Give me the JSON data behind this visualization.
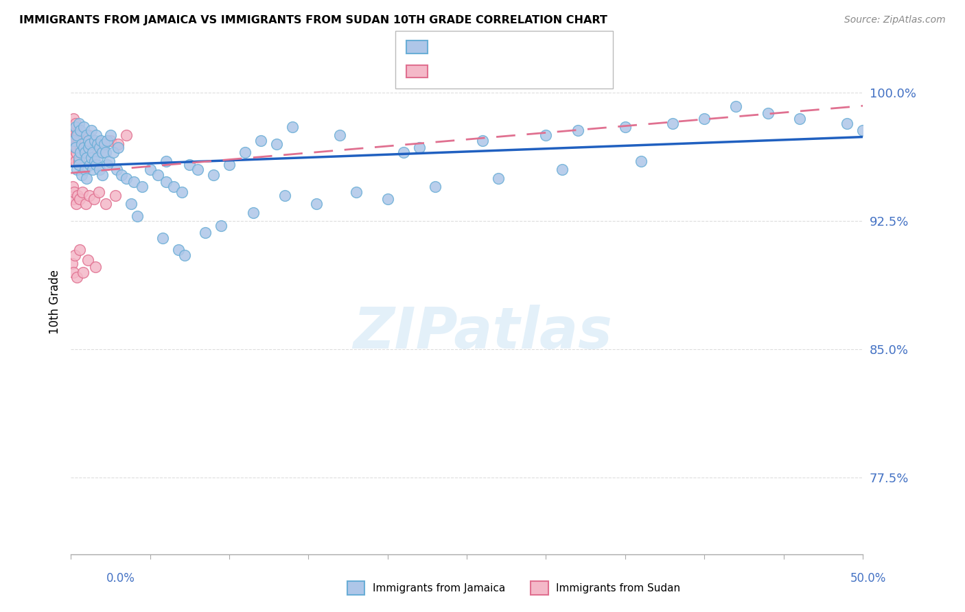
{
  "title": "IMMIGRANTS FROM JAMAICA VS IMMIGRANTS FROM SUDAN 10TH GRADE CORRELATION CHART",
  "source_text": "Source: ZipAtlas.com",
  "ylabel": "10th Grade",
  "ytick_values": [
    77.5,
    85.0,
    92.5,
    100.0
  ],
  "xlim": [
    0.0,
    50.0
  ],
  "ylim": [
    73.0,
    102.5
  ],
  "watermark": "ZIPatlas",
  "jamaica_color": "#aec6e8",
  "jamaica_edge": "#6aaed6",
  "sudan_color": "#f4b8c8",
  "sudan_edge": "#e07090",
  "trendline_jamaica_color": "#2060c0",
  "trendline_sudan_color": "#e07090",
  "jamaica_x": [
    0.2,
    0.3,
    0.3,
    0.4,
    0.4,
    0.5,
    0.5,
    0.5,
    0.6,
    0.6,
    0.7,
    0.7,
    0.8,
    0.8,
    0.9,
    0.9,
    1.0,
    1.0,
    1.0,
    1.1,
    1.1,
    1.2,
    1.2,
    1.3,
    1.3,
    1.4,
    1.4,
    1.5,
    1.5,
    1.6,
    1.6,
    1.7,
    1.7,
    1.8,
    1.8,
    1.9,
    2.0,
    2.0,
    2.1,
    2.2,
    2.3,
    2.3,
    2.4,
    2.5,
    2.7,
    2.9,
    3.0,
    3.2,
    3.5,
    4.0,
    4.5,
    5.0,
    5.5,
    6.0,
    6.0,
    6.5,
    7.0,
    7.5,
    8.0,
    9.0,
    10.0,
    11.0,
    12.0,
    13.0,
    14.0,
    17.0,
    21.0,
    22.0,
    26.0,
    30.0,
    32.0,
    35.0,
    38.0,
    40.0,
    42.0,
    44.0,
    46.0,
    49.0,
    50.0,
    3.8,
    4.2,
    5.8,
    6.8,
    7.2,
    8.5,
    9.5,
    11.5,
    13.5,
    15.5,
    18.0,
    20.0,
    23.0,
    27.0,
    31.0,
    36.0
  ],
  "jamaica_y": [
    97.2,
    96.8,
    98.0,
    95.5,
    97.5,
    96.2,
    98.2,
    95.8,
    96.5,
    97.8,
    95.2,
    97.0,
    96.8,
    98.0,
    95.5,
    96.5,
    96.2,
    97.5,
    95.0,
    96.8,
    97.2,
    95.8,
    97.0,
    96.2,
    97.8,
    95.5,
    96.5,
    96.0,
    97.2,
    95.8,
    97.5,
    96.2,
    97.0,
    95.5,
    96.8,
    97.2,
    95.2,
    96.5,
    97.0,
    96.5,
    95.8,
    97.2,
    96.0,
    97.5,
    96.5,
    95.5,
    96.8,
    95.2,
    95.0,
    94.8,
    94.5,
    95.5,
    95.2,
    94.8,
    96.0,
    94.5,
    94.2,
    95.8,
    95.5,
    95.2,
    95.8,
    96.5,
    97.2,
    97.0,
    98.0,
    97.5,
    96.5,
    96.8,
    97.2,
    97.5,
    97.8,
    98.0,
    98.2,
    98.5,
    99.2,
    98.8,
    98.5,
    98.2,
    97.8,
    93.5,
    92.8,
    91.5,
    90.8,
    90.5,
    91.8,
    92.2,
    93.0,
    94.0,
    93.5,
    94.2,
    93.8,
    94.5,
    95.0,
    95.5,
    96.0
  ],
  "sudan_x": [
    0.05,
    0.08,
    0.1,
    0.12,
    0.15,
    0.15,
    0.18,
    0.2,
    0.2,
    0.22,
    0.25,
    0.28,
    0.3,
    0.3,
    0.35,
    0.35,
    0.4,
    0.4,
    0.45,
    0.5,
    0.5,
    0.6,
    0.65,
    0.7,
    0.8,
    0.9,
    1.0,
    1.1,
    1.2,
    1.4,
    1.5,
    1.7,
    2.0,
    2.5,
    3.0,
    3.5,
    0.12,
    0.18,
    0.22,
    0.32,
    0.42,
    0.55,
    0.75,
    0.95,
    1.15,
    1.45,
    1.75,
    2.2,
    2.8,
    0.08,
    0.15,
    0.25,
    0.38,
    0.55,
    0.78,
    1.08,
    1.55
  ],
  "sudan_y": [
    97.5,
    98.0,
    97.2,
    96.8,
    98.5,
    97.0,
    96.5,
    97.8,
    96.2,
    97.5,
    96.8,
    97.2,
    98.2,
    96.0,
    97.5,
    96.5,
    97.0,
    96.8,
    97.5,
    97.2,
    96.0,
    96.8,
    97.5,
    97.0,
    96.5,
    97.2,
    96.8,
    97.5,
    97.0,
    96.8,
    97.2,
    97.0,
    96.8,
    97.2,
    97.0,
    97.5,
    94.5,
    93.8,
    94.2,
    93.5,
    94.0,
    93.8,
    94.2,
    93.5,
    94.0,
    93.8,
    94.2,
    93.5,
    94.0,
    90.0,
    89.5,
    90.5,
    89.2,
    90.8,
    89.5,
    90.2,
    89.8
  ]
}
